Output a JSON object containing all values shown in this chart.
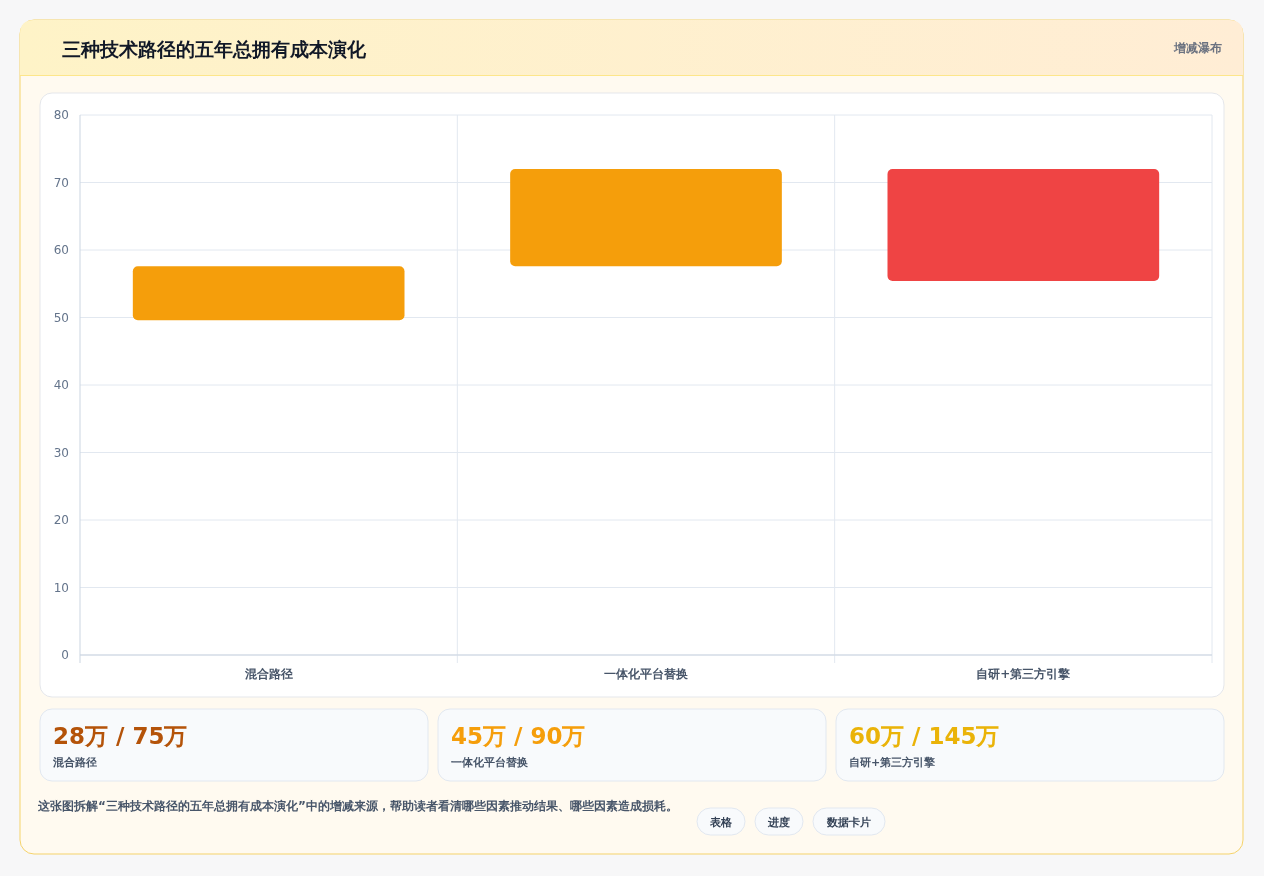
{
  "chart_data": [
    {
      "type": "bar",
      "title": "三种技术路径的五年总拥有成本演化",
      "subtitle": "增减瀑布",
      "categories": [
        "混合路径",
        "一体化平台替换",
        "自研+第三方引擎"
      ],
      "base": [
        49.6,
        57.6,
        72
      ],
      "values": [
        8,
        14.4,
        -16.6
      ],
      "colors": [
        "#f59e0b",
        "#f59e0b",
        "#ef4444"
      ],
      "ylim": [
        0,
        80
      ],
      "yticks": [
        0,
        10,
        20,
        30,
        40,
        50,
        60,
        70,
        80
      ],
      "grid": true,
      "annotations": [
        "这张图拆解“三种技术路径的五年总拥有成本演化”中的增减来源，帮助读者看清哪些因素推动结果、哪些因素造成损耗。",
        "表格",
        "进度",
        "数据卡片"
      ]
    },
    {
      "type": "other",
      "categories": [
        "混合路径",
        "一体化平台替换",
        "自研+第三方引擎"
      ],
      "value_labels": [
        "28万 / 75万",
        "45万 / 90万",
        "60万 / 145万"
      ]
    }
  ]
}
